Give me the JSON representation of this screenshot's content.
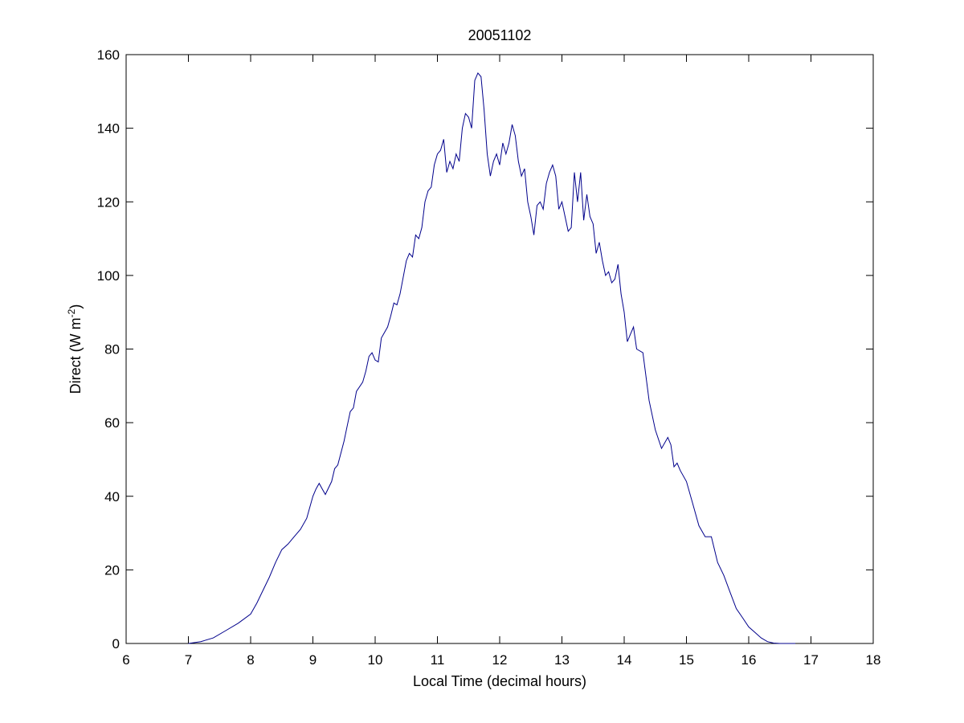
{
  "chart_data": {
    "type": "line",
    "title": "20051102",
    "xlabel": "Local Time (decimal hours)",
    "ylabel": "Direct (W m",
    "ylabel_sup": "-2",
    "ylabel_suffix": ")",
    "xlim": [
      6,
      18
    ],
    "ylim": [
      0,
      160
    ],
    "xticks": [
      6,
      7,
      8,
      9,
      10,
      11,
      12,
      13,
      14,
      15,
      16,
      17,
      18
    ],
    "yticks": [
      0,
      20,
      40,
      60,
      80,
      100,
      120,
      140,
      160
    ],
    "grid": false,
    "legend": "none",
    "series": [
      {
        "color": "#00008b",
        "x": [
          7.0,
          7.2,
          7.4,
          7.6,
          7.8,
          8.0,
          8.1,
          8.2,
          8.3,
          8.4,
          8.5,
          8.6,
          8.7,
          8.8,
          8.9,
          9.0,
          9.05,
          9.1,
          9.15,
          9.2,
          9.3,
          9.35,
          9.4,
          9.5,
          9.55,
          9.6,
          9.65,
          9.7,
          9.8,
          9.85,
          9.9,
          9.95,
          10.0,
          10.05,
          10.1,
          10.2,
          10.25,
          10.3,
          10.35,
          10.4,
          10.5,
          10.55,
          10.6,
          10.65,
          10.7,
          10.75,
          10.8,
          10.85,
          10.9,
          10.95,
          11.0,
          11.05,
          11.1,
          11.15,
          11.2,
          11.25,
          11.3,
          11.35,
          11.4,
          11.45,
          11.5,
          11.55,
          11.6,
          11.65,
          11.7,
          11.75,
          11.8,
          11.85,
          11.9,
          11.95,
          12.0,
          12.05,
          12.1,
          12.15,
          12.2,
          12.25,
          12.3,
          12.35,
          12.4,
          12.45,
          12.5,
          12.55,
          12.6,
          12.65,
          12.7,
          12.75,
          12.8,
          12.85,
          12.9,
          12.95,
          13.0,
          13.05,
          13.1,
          13.15,
          13.2,
          13.25,
          13.3,
          13.35,
          13.4,
          13.45,
          13.5,
          13.55,
          13.6,
          13.65,
          13.7,
          13.75,
          13.8,
          13.85,
          13.9,
          13.95,
          14.0,
          14.05,
          14.1,
          14.15,
          14.2,
          14.3,
          14.4,
          14.5,
          14.6,
          14.7,
          14.75,
          14.8,
          14.85,
          14.9,
          15.0,
          15.1,
          15.2,
          15.3,
          15.4,
          15.5,
          15.6,
          15.7,
          15.8,
          15.9,
          16.0,
          16.1,
          16.2,
          16.3,
          16.4,
          16.5,
          16.6,
          16.7,
          16.75
        ],
        "y": [
          0.0,
          0.5,
          1.5,
          3.5,
          5.5,
          8.0,
          11.0,
          14.5,
          18.0,
          22.0,
          25.5,
          27.0,
          29.0,
          31.0,
          34.0,
          40.0,
          42.0,
          43.5,
          42.0,
          40.5,
          44.0,
          47.5,
          48.5,
          55.0,
          59.0,
          63.0,
          64.0,
          68.5,
          71.0,
          74.0,
          78.0,
          79.0,
          77.0,
          76.5,
          83.0,
          86.0,
          89.0,
          92.5,
          92.0,
          95.0,
          104.0,
          106.0,
          105.0,
          111.0,
          110.0,
          113.0,
          120.0,
          123.0,
          124.0,
          130.0,
          133.0,
          134.0,
          137.0,
          128.0,
          131.0,
          129.0,
          133.0,
          131.0,
          140.0,
          144.0,
          143.0,
          140.0,
          153.0,
          155.0,
          154.0,
          145.0,
          133.0,
          127.0,
          131.0,
          133.0,
          130.0,
          136.0,
          133.0,
          136.0,
          141.0,
          138.0,
          131.0,
          127.0,
          129.0,
          120.0,
          116.0,
          111.0,
          119.0,
          120.0,
          118.0,
          125.0,
          128.0,
          130.0,
          127.0,
          118.0,
          120.0,
          116.0,
          112.0,
          113.0,
          128.0,
          120.0,
          128.0,
          115.0,
          122.0,
          116.0,
          114.0,
          106.0,
          109.0,
          104.0,
          100.0,
          101.0,
          98.0,
          99.0,
          103.0,
          95.0,
          90.0,
          82.0,
          84.0,
          86.0,
          80.0,
          79.0,
          66.0,
          58.0,
          53.0,
          56.0,
          54.0,
          48.0,
          49.0,
          47.0,
          44.0,
          38.0,
          32.0,
          29.0,
          29.0,
          22.0,
          18.5,
          14.0,
          9.5,
          7.0,
          4.5,
          3.0,
          1.5,
          0.5,
          0.1,
          0.0,
          0.0,
          0.0,
          0.0
        ]
      }
    ]
  }
}
